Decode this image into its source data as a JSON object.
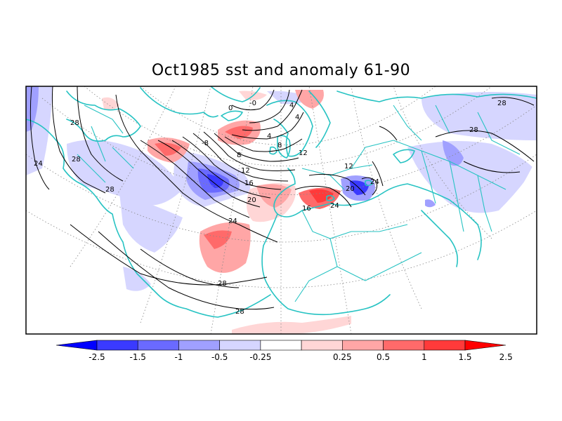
{
  "title": "Oct1985 sst and anomaly 61-90",
  "colorbar": {
    "labels": [
      "-2.5",
      "-1.5",
      "-1",
      "-0.5",
      "-0.25",
      "0.25",
      "0.5",
      "1",
      "1.5",
      "2.5"
    ],
    "colors": [
      "#0000ff",
      "#3a3aff",
      "#6a6aff",
      "#a0a0ff",
      "#d6d6ff",
      "#ffffff",
      "#ffd6d6",
      "#ffa6a6",
      "#ff6a6a",
      "#ff3a3a",
      "#ff0000"
    ]
  },
  "contour_labels": [
    "28",
    "24",
    "28",
    "28",
    "0",
    "-0",
    "4",
    "4",
    "-8",
    "4",
    "8",
    "8",
    "12",
    "12",
    "16",
    "20",
    "24",
    "28",
    "28",
    "12",
    "16",
    "20",
    "24",
    "24",
    "28",
    "28"
  ]
}
